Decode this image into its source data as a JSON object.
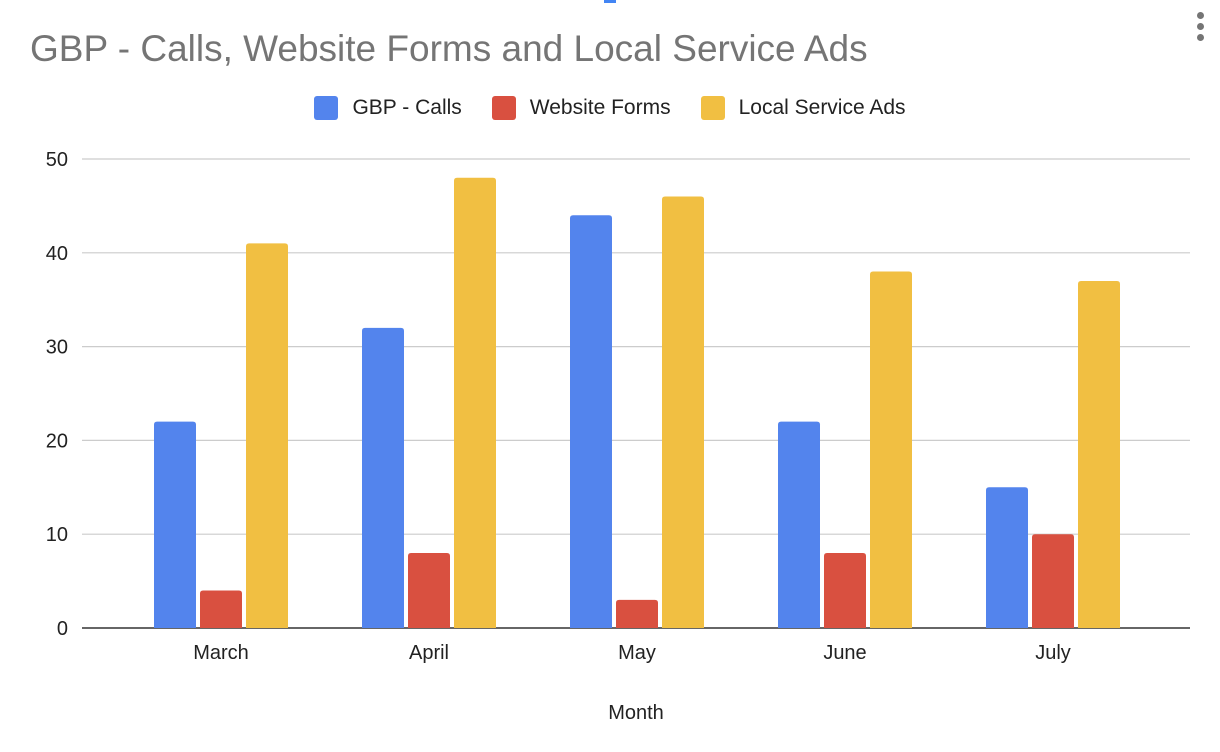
{
  "chart_data": {
    "type": "bar",
    "title": "GBP - Calls, Website Forms and Local Service Ads",
    "xlabel": "Month",
    "ylabel": "",
    "categories": [
      "March",
      "April",
      "May",
      "June",
      "July"
    ],
    "series": [
      {
        "name": "GBP - Calls",
        "color": "#5384ed",
        "values": [
          22,
          32,
          44,
          22,
          15
        ]
      },
      {
        "name": "Website Forms",
        "color": "#d95040",
        "values": [
          4,
          8,
          3,
          8,
          10
        ]
      },
      {
        "name": "Local Service Ads",
        "color": "#f1bf42",
        "values": [
          41,
          48,
          46,
          38,
          37
        ]
      }
    ],
    "ylim": [
      0,
      50
    ],
    "yticks": [
      "0",
      "10",
      "20",
      "30",
      "40",
      "50"
    ],
    "grid": true,
    "legend": "top"
  },
  "menu_icon": "more-vert-icon"
}
